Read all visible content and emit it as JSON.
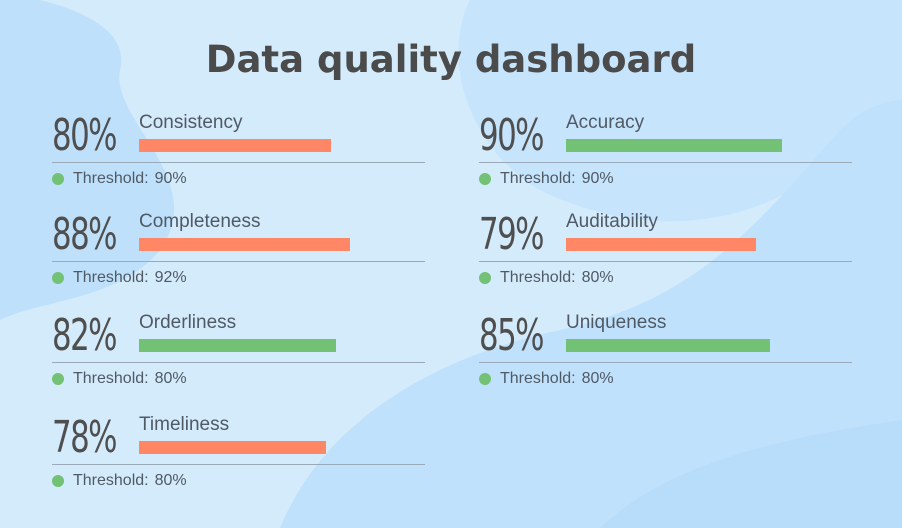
{
  "title": "Data quality dashboard",
  "colors": {
    "background": "#d4ebfc",
    "below_threshold": "#ff8766",
    "meets_threshold": "#72c174",
    "threshold_dot": "#72c174",
    "text": "#4f4f4f"
  },
  "threshold_label": "Threshold:",
  "metrics": [
    {
      "value_text": "80%",
      "value": 80,
      "label": "Consistency",
      "threshold_text": "90%",
      "threshold": 90,
      "status": "below"
    },
    {
      "value_text": "90%",
      "value": 90,
      "label": "Accuracy",
      "threshold_text": "90%",
      "threshold": 90,
      "status": "meets"
    },
    {
      "value_text": "88%",
      "value": 88,
      "label": "Completeness",
      "threshold_text": "92%",
      "threshold": 92,
      "status": "below"
    },
    {
      "value_text": "79%",
      "value": 79,
      "label": "Auditability",
      "threshold_text": "80%",
      "threshold": 80,
      "status": "below"
    },
    {
      "value_text": "82%",
      "value": 82,
      "label": "Orderliness",
      "threshold_text": "80%",
      "threshold": 80,
      "status": "meets"
    },
    {
      "value_text": "85%",
      "value": 85,
      "label": "Uniqueness",
      "threshold_text": "80%",
      "threshold": 80,
      "status": "meets"
    },
    {
      "value_text": "78%",
      "value": 78,
      "label": "Timeliness",
      "threshold_text": "80%",
      "threshold": 80,
      "status": "below"
    }
  ]
}
